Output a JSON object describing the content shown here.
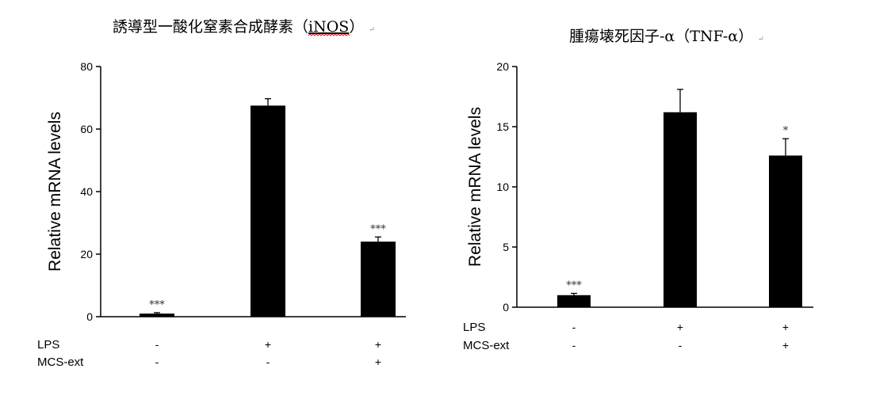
{
  "chart_data": [
    {
      "type": "bar",
      "title_main": "誘導型一酸化窒素合成酵素（",
      "title_abbr": "iNOS",
      "title_close": "）",
      "return_mark": "↵",
      "ylabel": "Relative mRNA levels",
      "ylim": [
        0,
        80
      ],
      "yticks": [
        0,
        20,
        40,
        60,
        80
      ],
      "values": [
        1,
        67.5,
        24
      ],
      "errors": [
        0.3,
        2.2,
        1.5
      ],
      "significance": [
        "***",
        "",
        "***"
      ],
      "conditions": [
        {
          "label": "LPS",
          "values": [
            "-",
            "+",
            "+"
          ]
        },
        {
          "label": "MCS-ext",
          "values": [
            "-",
            "-",
            "+"
          ]
        }
      ]
    },
    {
      "type": "bar",
      "title_main": "腫瘍壊死因子-α（TNF-α）",
      "title_abbr": "",
      "title_close": "",
      "return_mark": "↵",
      "ylabel": "Relative mRNA levels",
      "ylim": [
        0,
        20
      ],
      "yticks": [
        0,
        5,
        10,
        15,
        20
      ],
      "values": [
        1,
        16.2,
        12.6
      ],
      "errors": [
        0.15,
        1.9,
        1.4
      ],
      "significance": [
        "***",
        "",
        "*"
      ],
      "conditions": [
        {
          "label": "LPS",
          "values": [
            "-",
            "+",
            "+"
          ]
        },
        {
          "label": "MCS-ext",
          "values": [
            "-",
            "-",
            "+"
          ]
        }
      ]
    }
  ]
}
